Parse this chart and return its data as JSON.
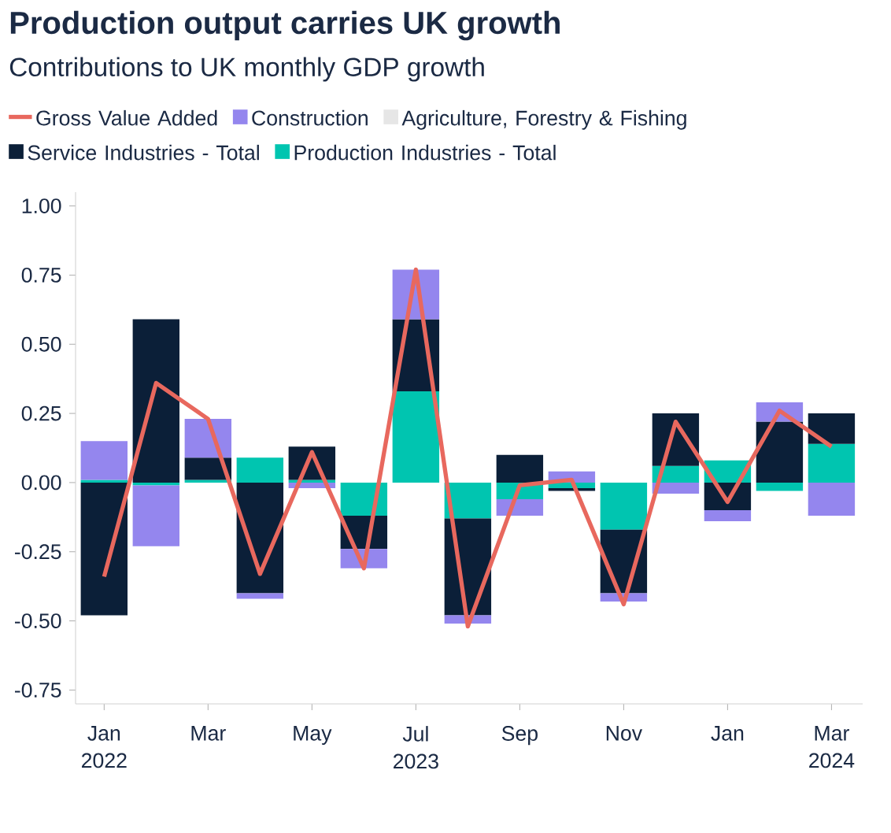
{
  "chart_data": {
    "type": "bar",
    "stacked": true,
    "title": "Production output carries UK growth",
    "subtitle": "Contributions to UK monthly GDP growth",
    "categories": [
      "Jan 2022",
      null,
      "Mar",
      null,
      "May",
      null,
      "Jul 2023",
      null,
      "Sep",
      null,
      "Nov",
      null,
      "Jan",
      null,
      "Mar 2024"
    ],
    "ylim": [
      -0.8,
      1.05
    ],
    "yticks": [
      {
        "value": -0.75,
        "label": "-0.75"
      },
      {
        "value": -0.5,
        "label": "-0.50"
      },
      {
        "value": -0.25,
        "label": "-0.25"
      },
      {
        "value": 0,
        "label": "0.00"
      },
      {
        "value": 0.25,
        "label": "0.25"
      },
      {
        "value": 0.5,
        "label": "0.50"
      },
      {
        "value": 0.75,
        "label": "0.75"
      },
      {
        "value": 1,
        "label": "1.00"
      }
    ],
    "legend": "top",
    "series": [
      {
        "name": "Gross Value Added",
        "type": "line",
        "color": "#e8685e",
        "values": [
          -0.34,
          0.36,
          0.23,
          -0.33,
          0.11,
          -0.31,
          0.77,
          -0.52,
          -0.01,
          0.01,
          -0.44,
          0.22,
          -0.07,
          0.26,
          0.13
        ]
      },
      {
        "name": "Production Industries - Total",
        "color": "#00c5b0",
        "values": [
          0.01,
          -0.01,
          0.01,
          0.09,
          0.01,
          -0.12,
          0.33,
          -0.13,
          -0.06,
          -0.02,
          -0.17,
          0.06,
          0.08,
          -0.03,
          0.14
        ]
      },
      {
        "name": "Service Industries - Total",
        "color": "#0b1f38",
        "values": [
          -0.48,
          0.59,
          0.08,
          -0.4,
          0.12,
          -0.12,
          0.26,
          -0.35,
          0.1,
          -0.01,
          -0.23,
          0.19,
          -0.1,
          0.22,
          0.11
        ]
      },
      {
        "name": "Agriculture, Forestry & Fishing",
        "color": "#e6e6e6",
        "values": [
          0,
          0,
          0,
          0,
          0,
          0,
          0,
          0,
          0,
          0,
          0,
          0,
          0,
          0,
          0
        ]
      },
      {
        "name": "Construction",
        "color": "#9486ee",
        "values": [
          0.14,
          -0.22,
          0.14,
          -0.02,
          -0.02,
          -0.07,
          0.18,
          -0.03,
          -0.06,
          0.04,
          -0.03,
          -0.04,
          -0.04,
          0.07,
          -0.12
        ]
      }
    ]
  }
}
